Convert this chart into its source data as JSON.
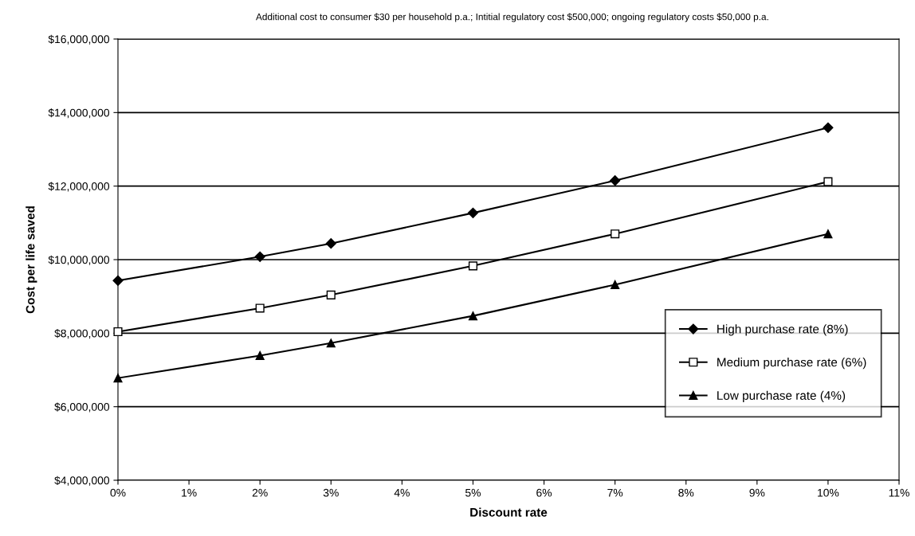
{
  "chart_data": {
    "type": "line",
    "title": "Additional cost to consumer $30 per household p.a.; Intitial regulatory cost $500,000; ongoing regulatory costs $50,000 p.a.",
    "xlabel": "Discount rate",
    "ylabel": "Cost per life saved",
    "x": [
      0,
      2,
      3,
      5,
      7,
      10
    ],
    "series": [
      {
        "name": "High purchase rate (8%)",
        "color": "#000000",
        "marker": "diamond",
        "values": [
          9430000,
          10080000,
          10440000,
          11270000,
          12150000,
          13590000
        ]
      },
      {
        "name": "Medium purchase rate (6%)",
        "color": "#000000",
        "marker": "square",
        "values": [
          8040000,
          8680000,
          9040000,
          9830000,
          10700000,
          12120000
        ]
      },
      {
        "name": "Low purchase rate (4%)",
        "color": "#000000",
        "marker": "triangle",
        "values": [
          6780000,
          7390000,
          7730000,
          8470000,
          9320000,
          10700000
        ]
      }
    ],
    "xlim": [
      0,
      11
    ],
    "xticks": [
      {
        "value": 0,
        "label": "0%"
      },
      {
        "value": 1,
        "label": "1%"
      },
      {
        "value": 2,
        "label": "2%"
      },
      {
        "value": 3,
        "label": "3%"
      },
      {
        "value": 4,
        "label": "4%"
      },
      {
        "value": 5,
        "label": "5%"
      },
      {
        "value": 6,
        "label": "6%"
      },
      {
        "value": 7,
        "label": "7%"
      },
      {
        "value": 8,
        "label": "8%"
      },
      {
        "value": 9,
        "label": "9%"
      },
      {
        "value": 10,
        "label": "10%"
      },
      {
        "value": 11,
        "label": "11%"
      }
    ],
    "ylim": [
      4000000,
      16000000
    ],
    "yticks": [
      {
        "value": 4000000,
        "label": "$4,000,000"
      },
      {
        "value": 6000000,
        "label": "$6,000,000"
      },
      {
        "value": 8000000,
        "label": "$8,000,000"
      },
      {
        "value": 10000000,
        "label": "$10,000,000"
      },
      {
        "value": 12000000,
        "label": "$12,000,000"
      },
      {
        "value": 14000000,
        "label": "$14,000,000"
      },
      {
        "value": 16000000,
        "label": "$16,000,000"
      }
    ],
    "grid": "y",
    "legend": "bottom right",
    "line_style": "solid"
  }
}
